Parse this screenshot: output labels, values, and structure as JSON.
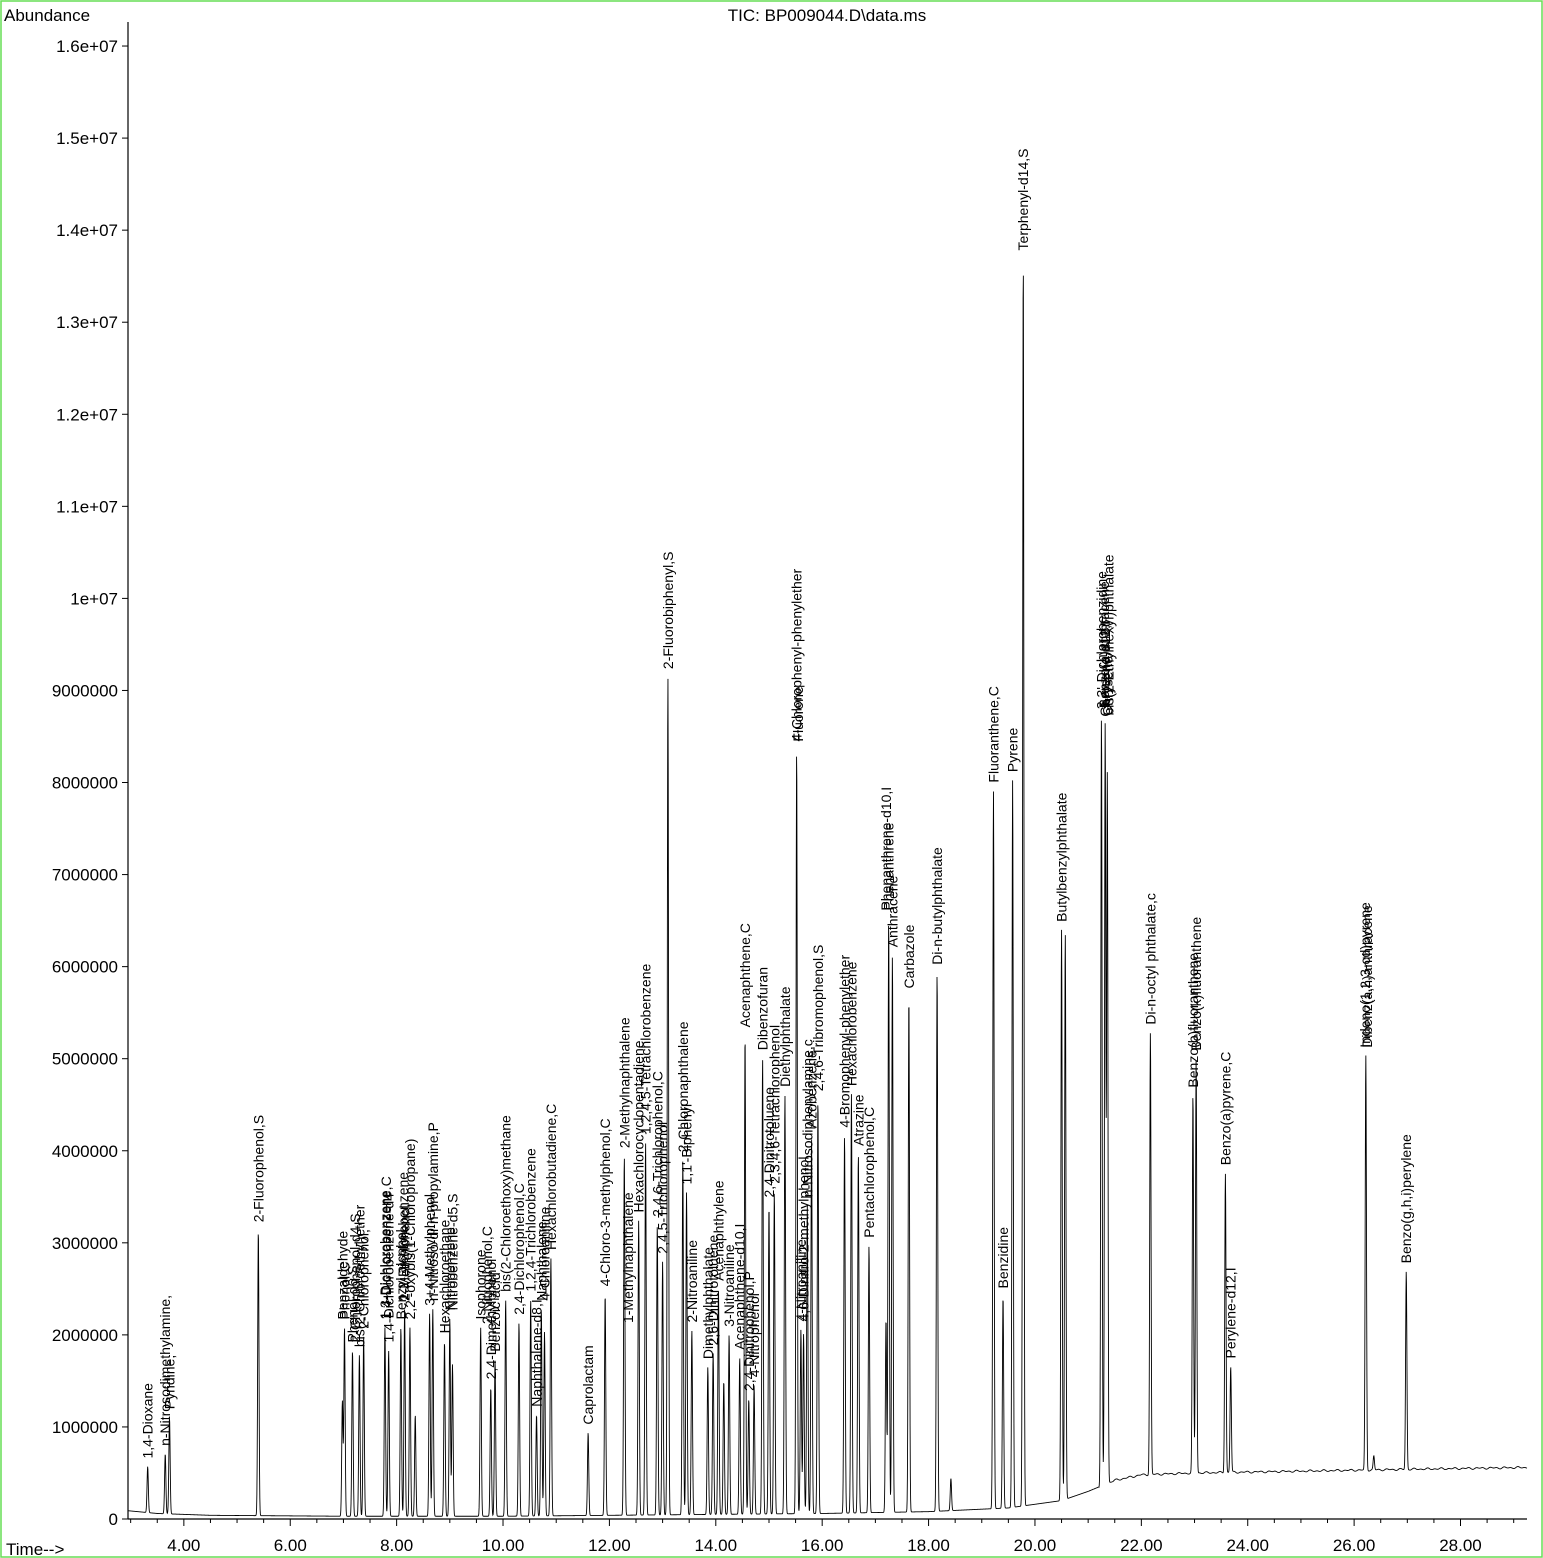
{
  "chart_data": {
    "type": "line",
    "title": "TIC: BP009044.D\\data.ms",
    "ylabel": "Abundance",
    "xlabel": "Time-->",
    "xlim": [
      2.95,
      29.25
    ],
    "ylim": [
      0,
      16500000
    ],
    "x_ticks": [
      4,
      6,
      8,
      10,
      12,
      14,
      16,
      18,
      20,
      22,
      24,
      26,
      28
    ],
    "x_tick_labels": [
      "4.00",
      "6.00",
      "8.00",
      "10.00",
      "12.00",
      "14.00",
      "16.00",
      "18.00",
      "20.00",
      "22.00",
      "24.00",
      "26.00",
      "28.00"
    ],
    "y_ticks": [
      0,
      1000000,
      2000000,
      3000000,
      4000000,
      5000000,
      6000000,
      7000000,
      8000000,
      9000000,
      10000000,
      11000000,
      12000000,
      13000000,
      14000000,
      15000000,
      16000000
    ],
    "y_tick_labels": [
      "0",
      "1000000",
      "2000000",
      "3000000",
      "4000000",
      "5000000",
      "6000000",
      "7000000",
      "8000000",
      "9000000",
      "1e+07",
      "1.1e+07",
      "1.2e+07",
      "1.3e+07",
      "1.4e+07",
      "1.5e+07",
      "1.6e+07"
    ],
    "grid": false,
    "baseline": [
      [
        2.95,
        90000
      ],
      [
        3.5,
        60000
      ],
      [
        4.5,
        40000
      ],
      [
        7.0,
        30000
      ],
      [
        10.0,
        30000
      ],
      [
        12.0,
        40000
      ],
      [
        14.0,
        50000
      ],
      [
        16.0,
        60000
      ],
      [
        18.0,
        80000
      ],
      [
        19.5,
        120000
      ],
      [
        20.5,
        200000
      ],
      [
        21.0,
        300000
      ],
      [
        21.5,
        420000
      ],
      [
        22.0,
        480000
      ],
      [
        23.0,
        500000
      ],
      [
        25.0,
        520000
      ],
      [
        27.0,
        540000
      ],
      [
        29.25,
        560000
      ]
    ],
    "peaks": [
      {
        "rt": 3.32,
        "height": 500000
      },
      {
        "rt": 3.65,
        "height": 650000
      },
      {
        "rt": 3.73,
        "height": 1050000
      },
      {
        "rt": 5.4,
        "height": 3100000
      },
      {
        "rt": 6.98,
        "height": 1250000
      },
      {
        "rt": 7.02,
        "height": 2050000
      },
      {
        "rt": 7.17,
        "height": 1800000
      },
      {
        "rt": 7.3,
        "height": 1750000
      },
      {
        "rt": 7.38,
        "height": 1950000
      },
      {
        "rt": 7.78,
        "height": 2050000
      },
      {
        "rt": 7.85,
        "height": 1800000
      },
      {
        "rt": 8.08,
        "height": 2050000
      },
      {
        "rt": 8.15,
        "height": 2250000
      },
      {
        "rt": 8.25,
        "height": 2050000
      },
      {
        "rt": 8.35,
        "height": 1100000
      },
      {
        "rt": 8.62,
        "height": 2200000
      },
      {
        "rt": 8.68,
        "height": 2250000
      },
      {
        "rt": 8.9,
        "height": 1900000
      },
      {
        "rt": 9.0,
        "height": 2150000
      },
      {
        "rt": 9.05,
        "height": 1650000
      },
      {
        "rt": 9.58,
        "height": 2050000
      },
      {
        "rt": 9.77,
        "height": 1400000
      },
      {
        "rt": 9.85,
        "height": 1700000
      },
      {
        "rt": 10.05,
        "height": 2350000
      },
      {
        "rt": 10.3,
        "height": 2100000
      },
      {
        "rt": 10.52,
        "height": 2350000
      },
      {
        "rt": 10.63,
        "height": 1100000
      },
      {
        "rt": 10.72,
        "height": 2250000
      },
      {
        "rt": 10.78,
        "height": 2000000
      },
      {
        "rt": 10.9,
        "height": 2800000
      },
      {
        "rt": 11.6,
        "height": 900000
      },
      {
        "rt": 11.92,
        "height": 2400000
      },
      {
        "rt": 12.28,
        "height": 3900000
      },
      {
        "rt": 12.55,
        "height": 3200000
      },
      {
        "rt": 12.68,
        "height": 4050000
      },
      {
        "rt": 12.9,
        "height": 3150000
      },
      {
        "rt": 13.0,
        "height": 2750000
      },
      {
        "rt": 13.1,
        "height": 9100000
      },
      {
        "rt": 13.38,
        "height": 3850000
      },
      {
        "rt": 13.45,
        "height": 3500000
      },
      {
        "rt": 13.55,
        "height": 2000000
      },
      {
        "rt": 13.85,
        "height": 1600000
      },
      {
        "rt": 13.95,
        "height": 1750000
      },
      {
        "rt": 14.05,
        "height": 2450000
      },
      {
        "rt": 14.15,
        "height": 1450000
      },
      {
        "rt": 14.25,
        "height": 1950000
      },
      {
        "rt": 14.45,
        "height": 1700000
      },
      {
        "rt": 14.55,
        "height": 5200000
      },
      {
        "rt": 14.62,
        "height": 1250000
      },
      {
        "rt": 14.72,
        "height": 1400000
      },
      {
        "rt": 14.88,
        "height": 4950000
      },
      {
        "rt": 15.0,
        "height": 3350000
      },
      {
        "rt": 15.1,
        "height": 3500000
      },
      {
        "rt": 15.3,
        "height": 4550000
      },
      {
        "rt": 15.52,
        "height": 8300000
      },
      {
        "rt": 15.6,
        "height": 2000000
      },
      {
        "rt": 15.65,
        "height": 1950000
      },
      {
        "rt": 15.72,
        "height": 3350000
      },
      {
        "rt": 15.8,
        "height": 4100000
      },
      {
        "rt": 15.92,
        "height": 4500000
      },
      {
        "rt": 16.42,
        "height": 4100000
      },
      {
        "rt": 16.55,
        "height": 4550000
      },
      {
        "rt": 16.68,
        "height": 3900000
      },
      {
        "rt": 16.88,
        "height": 2900000
      },
      {
        "rt": 17.2,
        "height": 2100000
      },
      {
        "rt": 17.25,
        "height": 6450000
      },
      {
        "rt": 17.32,
        "height": 6050000
      },
      {
        "rt": 17.63,
        "height": 5600000
      },
      {
        "rt": 18.16,
        "height": 5850000
      },
      {
        "rt": 18.42,
        "height": 350000
      },
      {
        "rt": 19.22,
        "height": 7800000
      },
      {
        "rt": 19.4,
        "height": 2300000
      },
      {
        "rt": 19.58,
        "height": 7900000
      },
      {
        "rt": 19.78,
        "height": 13550000
      },
      {
        "rt": 20.5,
        "height": 6200000
      },
      {
        "rt": 20.57,
        "height": 6150000
      },
      {
        "rt": 21.25,
        "height": 8350000
      },
      {
        "rt": 21.32,
        "height": 8250000
      },
      {
        "rt": 21.36,
        "height": 7700000
      },
      {
        "rt": 22.17,
        "height": 4800000
      },
      {
        "rt": 22.97,
        "height": 4100000
      },
      {
        "rt": 23.03,
        "height": 4500000
      },
      {
        "rt": 23.58,
        "height": 3250000
      },
      {
        "rt": 23.68,
        "height": 1150000
      },
      {
        "rt": 26.22,
        "height": 4500000
      },
      {
        "rt": 26.37,
        "height": 150000
      },
      {
        "rt": 26.98,
        "height": 2150000
      }
    ],
    "labels": [
      "1,4-Dioxane",
      "n-Nitrosodimethylamine,",
      "Pyridine,",
      "2-Fluorophenol,S",
      "Benzaldehyde",
      "Phenol,C",
      "Phenol-d6,S",
      "2-Chlorophenol-d4,S",
      "bis(2-Chloroethyl)ether",
      "2-Chlorophenol,",
      "1,3-Dichlorobenzene",
      "1,4-Dichlorobenzene,C",
      "1,4-Dichlorobenzene-d4",
      "Benzyl alcohol",
      "1,2-Dichlorobenzene",
      "2-Methylphenol",
      "2,2'-oxybis(1-Chloropropane)",
      "3+4-Methylphenol",
      "n-Nitroso-di-n-propylamine,P",
      "Hexachloroethane",
      "Nitrobenzene",
      "Nitrobenzene-d5,S",
      "Isophorone",
      "2-Nitrophenol,C",
      "2,4-Dimethylphenol",
      "Benzoic acid",
      "bis(2-Chloroethoxy)methane",
      "2,4-Dichlorophenol,C",
      "1,2,4-Trichlorobenzene",
      "Naphthalene-d8,I",
      "Naphthalene",
      "4-Chloroaniline",
      "Hexachlorobutadiene,C",
      "Caprolactam",
      "4-Chloro-3-methylphenol,C",
      "2-Methylnaphthalene",
      "1-Methylnaphthalene",
      "Hexachlorocyclopentadiene",
      "1,2,4,5-Tetrachlorobenzene",
      "2,4,6-Trichlorophenol,C",
      "2,4,5-Trichlorophenol",
      "2-Fluorobiphenyl,S",
      "2-Chloronaphthalene",
      "1,1'-Biphenyl",
      "2-Nitroaniline",
      "Dimethylphthalate",
      "2,6-Dinitrotoluene",
      "Acenaphthylene",
      "3-Nitroaniline",
      "Acenaphthene-d10,I",
      "Acenaphthene,C",
      "2,4-Dinitrophenol,P",
      "4-Nitrophenol",
      "Dibenzofuran",
      "2,4-Dinitrotoluene",
      "2,3,4,6-Tetrachlorophenol",
      "Diethylphthalate",
      "4-Chlorophenyl-phenylether",
      "Fluorene",
      "4-Nitroaniline",
      "4,6-Dinitro-2-methylphenol",
      "n-Nitrosodiphenylamine,c",
      "Azobenzene",
      "2,4,6-Tribromophenol,S",
      "4-Bromophenyl-phenylether",
      "Hexachlorobenzene",
      "Atrazine",
      "Pentachlorophenol,C",
      "Phenanthrene-d10,I",
      "Phenanthrene",
      "Anthracene",
      "Carbazole",
      "Di-n-butylphthalate",
      "Fluoranthene,C",
      "Benzidine",
      "Pyrene",
      "Terphenyl-d14,S",
      "Butylbenzylphthalate",
      "3,3'-Dichlorobenzidine",
      "Benzo(a)anthracene",
      "Chrysene-d12,I",
      "Chrysene",
      "bis(2-Ethylhexyl)phthalate",
      "Di-n-octyl phthalate,c",
      "Benzo(b)fluoranthene",
      "Benzo(k)fluoranthene",
      "Benzo(a)pyrene,C",
      "Perylene-d12,I",
      "Indeno(1,2,3-cd)pyrene",
      "Dibenz(a,h)anthracene",
      "Benzo(g,h,i)perylene"
    ],
    "label_rt": [
      3.32,
      3.65,
      3.73,
      5.4,
      6.98,
      7.02,
      7.17,
      7.22,
      7.3,
      7.38,
      7.78,
      7.8,
      7.85,
      8.08,
      8.12,
      8.15,
      8.25,
      8.62,
      8.68,
      8.9,
      9.0,
      9.05,
      9.58,
      9.7,
      9.77,
      9.85,
      10.05,
      10.3,
      10.52,
      10.63,
      10.72,
      10.78,
      10.9,
      11.6,
      11.92,
      12.28,
      12.35,
      12.55,
      12.68,
      12.9,
      13.0,
      13.1,
      13.38,
      13.45,
      13.55,
      13.85,
      13.95,
      14.05,
      14.25,
      14.45,
      14.55,
      14.62,
      14.72,
      14.88,
      15.0,
      15.1,
      15.3,
      15.52,
      15.55,
      15.6,
      15.65,
      15.72,
      15.8,
      15.92,
      16.42,
      16.55,
      16.68,
      16.88,
      17.2,
      17.25,
      17.32,
      17.63,
      18.16,
      19.22,
      19.4,
      19.58,
      19.78,
      20.5,
      21.25,
      21.3,
      21.32,
      21.36,
      21.38,
      22.17,
      22.97,
      23.03,
      23.58,
      23.68,
      26.2,
      26.24,
      26.98
    ]
  }
}
